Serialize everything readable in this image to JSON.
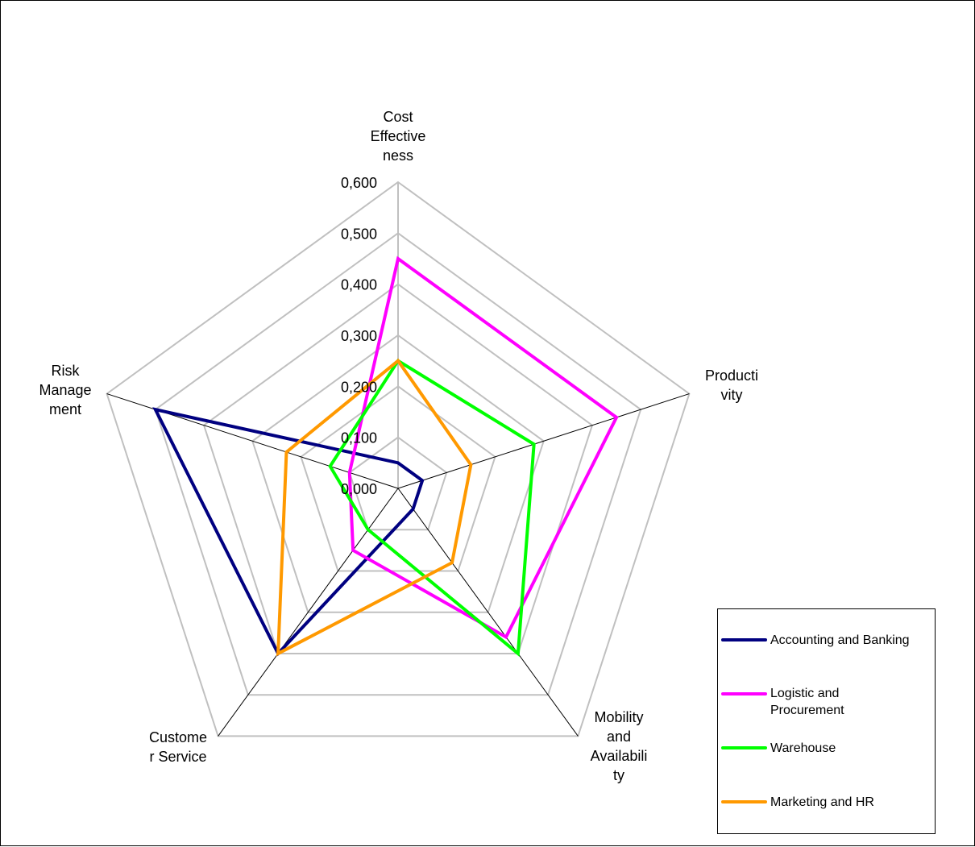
{
  "chart_data": {
    "type": "radar",
    "categories": [
      "Cost Effectiveness",
      "Productivity",
      "Mobility and Availability",
      "Customer Service",
      "Risk Management"
    ],
    "category_labels": [
      [
        "Cost",
        "Effective",
        "ness"
      ],
      [
        "Producti",
        "vity"
      ],
      [
        "Mobility",
        "and",
        "Availabili",
        "ty"
      ],
      [
        "Custome",
        "r Service"
      ],
      [
        "Risk",
        "Manage",
        "ment"
      ]
    ],
    "ticks": [
      "0,000",
      "0,100",
      "0,200",
      "0,300",
      "0,400",
      "0,500",
      "0,600"
    ],
    "range": [
      0,
      0.6
    ],
    "series": [
      {
        "name": "Accounting and Banking",
        "color": "#000080",
        "values": [
          0.05,
          0.05,
          0.05,
          0.4,
          0.5
        ]
      },
      {
        "name": "Logistic and Procurement",
        "color": "#ff00ff",
        "values": [
          0.45,
          0.45,
          0.36,
          0.15,
          0.1
        ]
      },
      {
        "name": "Warehouse",
        "color": "#00ff00",
        "values": [
          0.25,
          0.28,
          0.4,
          0.1,
          0.14
        ]
      },
      {
        "name": "Marketing and HR",
        "color": "#ff9900",
        "values": [
          0.25,
          0.15,
          0.18,
          0.4,
          0.23
        ]
      }
    ],
    "legend": {
      "position": "bottom-right"
    },
    "grid": true
  }
}
